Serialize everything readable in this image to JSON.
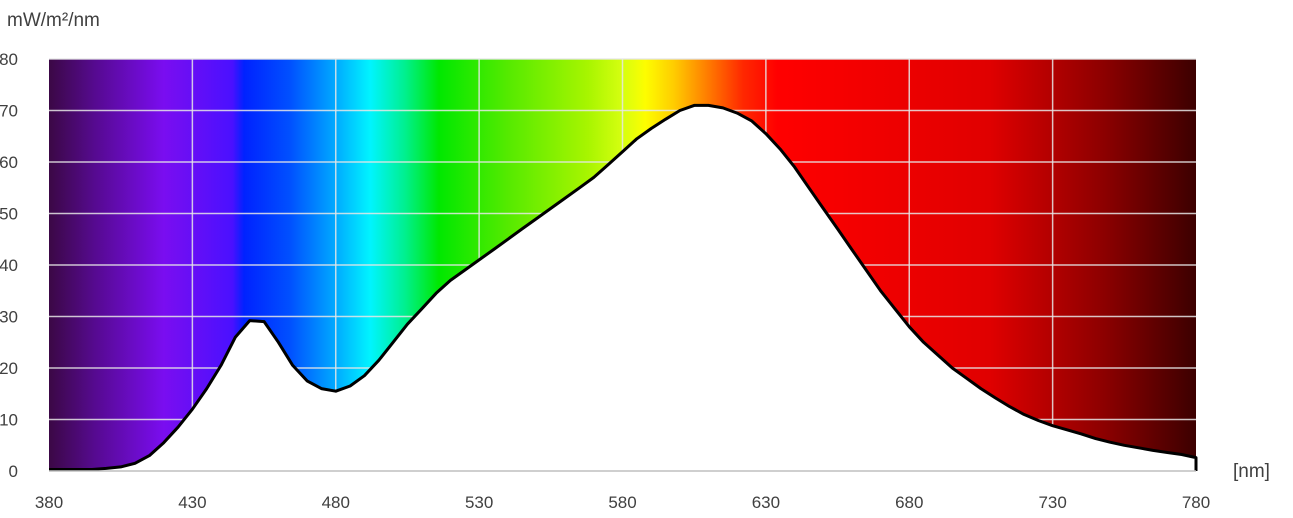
{
  "chart_data": {
    "type": "area",
    "title": "",
    "ylabel": "mW/m²/nm",
    "xlabel": "[nm]",
    "xlim": [
      380,
      780
    ],
    "ylim": [
      0,
      80
    ],
    "x_ticks": [
      380,
      430,
      480,
      530,
      580,
      630,
      680,
      730,
      780
    ],
    "y_ticks": [
      0,
      10,
      20,
      30,
      40,
      50,
      60,
      70,
      80
    ],
    "x_tick_labels": [
      "380",
      "430",
      "480",
      "530",
      "580",
      "630",
      "680",
      "730",
      "780"
    ],
    "y_tick_labels": [
      "0",
      "10",
      "20",
      "30",
      "40",
      "50",
      "60",
      "70",
      "80"
    ],
    "grid": true,
    "background": "visible-spectrum gradient above curve",
    "line_color": "#000000",
    "series": [
      {
        "x": [
          380,
          385,
          390,
          395,
          400,
          405,
          410,
          415,
          420,
          425,
          430,
          435,
          440,
          445,
          450,
          455,
          460,
          465,
          470,
          475,
          480,
          485,
          490,
          495,
          500,
          505,
          510,
          515,
          520,
          525,
          530,
          535,
          540,
          545,
          550,
          555,
          560,
          565,
          570,
          575,
          580,
          585,
          590,
          595,
          600,
          605,
          610,
          615,
          620,
          625,
          630,
          635,
          640,
          645,
          650,
          655,
          660,
          665,
          670,
          675,
          680,
          685,
          690,
          695,
          700,
          705,
          710,
          715,
          720,
          725,
          730,
          735,
          740,
          745,
          750,
          755,
          760,
          765,
          770,
          775,
          780
        ],
        "values": [
          0.3,
          0.3,
          0.3,
          0.3,
          0.5,
          0.8,
          1.5,
          3,
          5.5,
          8.5,
          12,
          16,
          20.5,
          26,
          29.2,
          29,
          25,
          20.5,
          17.5,
          16,
          15.5,
          16.5,
          18.5,
          21.5,
          25,
          28.5,
          31.5,
          34.5,
          37,
          39,
          41,
          43,
          45,
          47,
          49,
          51,
          53,
          55,
          57,
          59.5,
          62,
          64.5,
          66.5,
          68.3,
          70,
          71,
          71,
          70.5,
          69.5,
          68,
          65.5,
          62.5,
          59,
          55,
          51,
          47,
          43,
          39,
          35,
          31.5,
          28,
          25,
          22.5,
          20,
          18,
          16,
          14.2,
          12.5,
          11,
          9.8,
          8.8,
          8,
          7.2,
          6.3,
          5.6,
          5,
          4.5,
          4,
          3.6,
          3.2,
          2.6
        ]
      }
    ]
  }
}
